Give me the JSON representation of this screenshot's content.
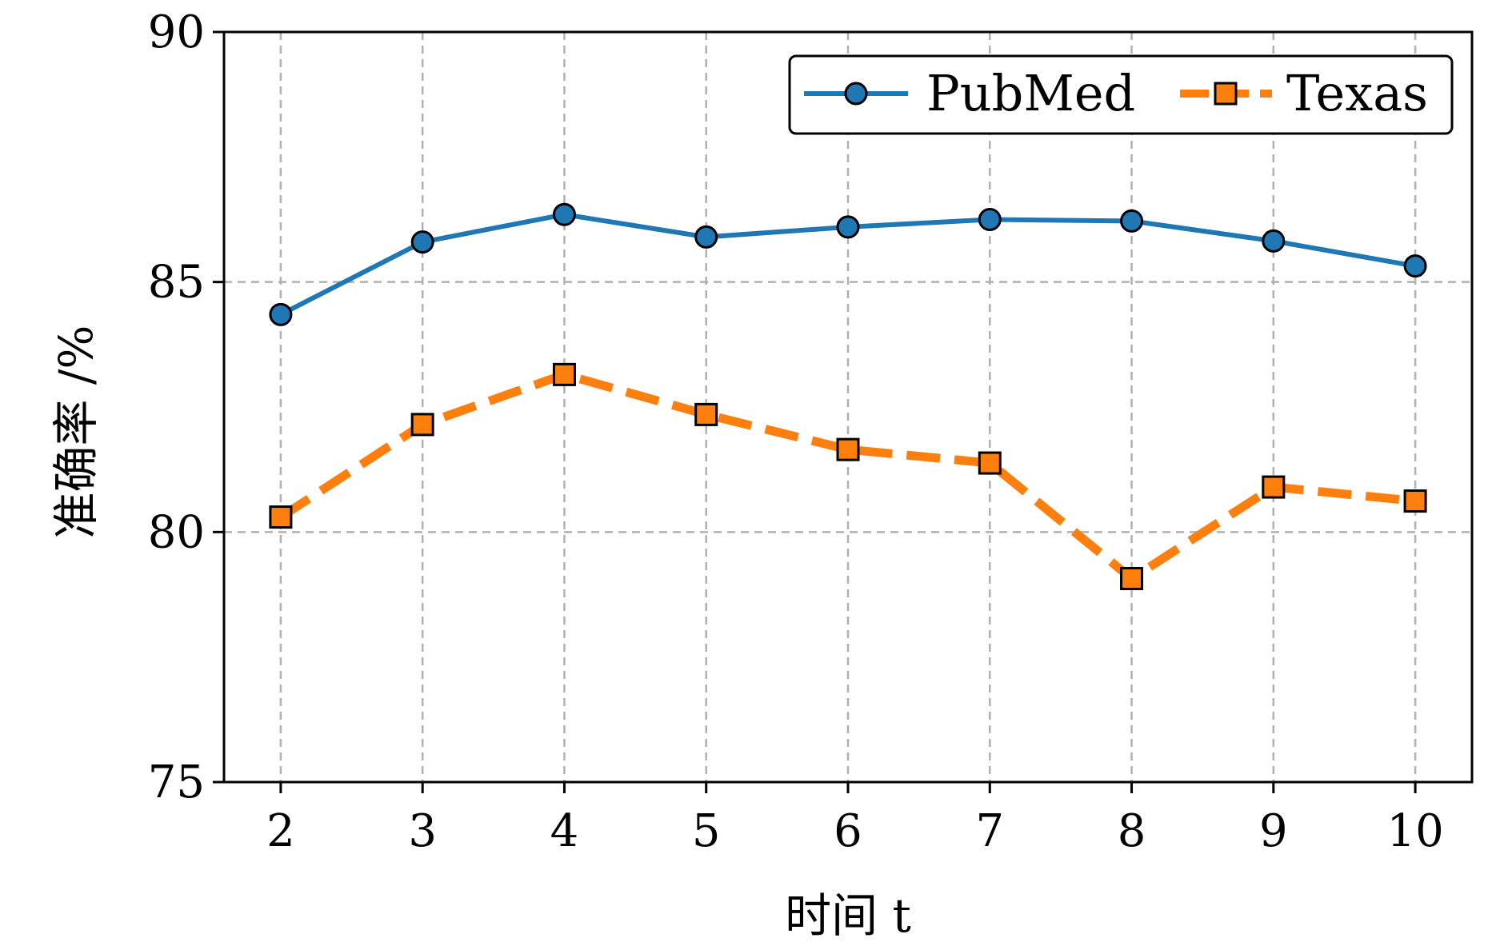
{
  "chart_data": {
    "type": "line",
    "title": "",
    "xlabel": "时间 t",
    "ylabel": "准确率 /%",
    "x": [
      2,
      3,
      4,
      5,
      6,
      7,
      8,
      9,
      10
    ],
    "xticks": [
      "2",
      "3",
      "4",
      "5",
      "6",
      "7",
      "8",
      "9",
      "10"
    ],
    "yticks": [
      "75",
      "80",
      "85",
      "90"
    ],
    "ylim": [
      75,
      90
    ],
    "grid": true,
    "legend_position": "top-right",
    "series": [
      {
        "name": "PubMed",
        "values": [
          84.35,
          85.8,
          86.35,
          85.9,
          86.1,
          86.25,
          86.22,
          85.82,
          85.32
        ],
        "color": "#1f77b4",
        "marker": "circle",
        "line_style": "solid"
      },
      {
        "name": "Texas",
        "values": [
          80.3,
          82.15,
          83.15,
          82.35,
          81.65,
          81.38,
          79.07,
          80.9,
          80.62
        ],
        "color": "#ff7f0e",
        "marker": "square",
        "line_style": "dashed"
      }
    ]
  }
}
